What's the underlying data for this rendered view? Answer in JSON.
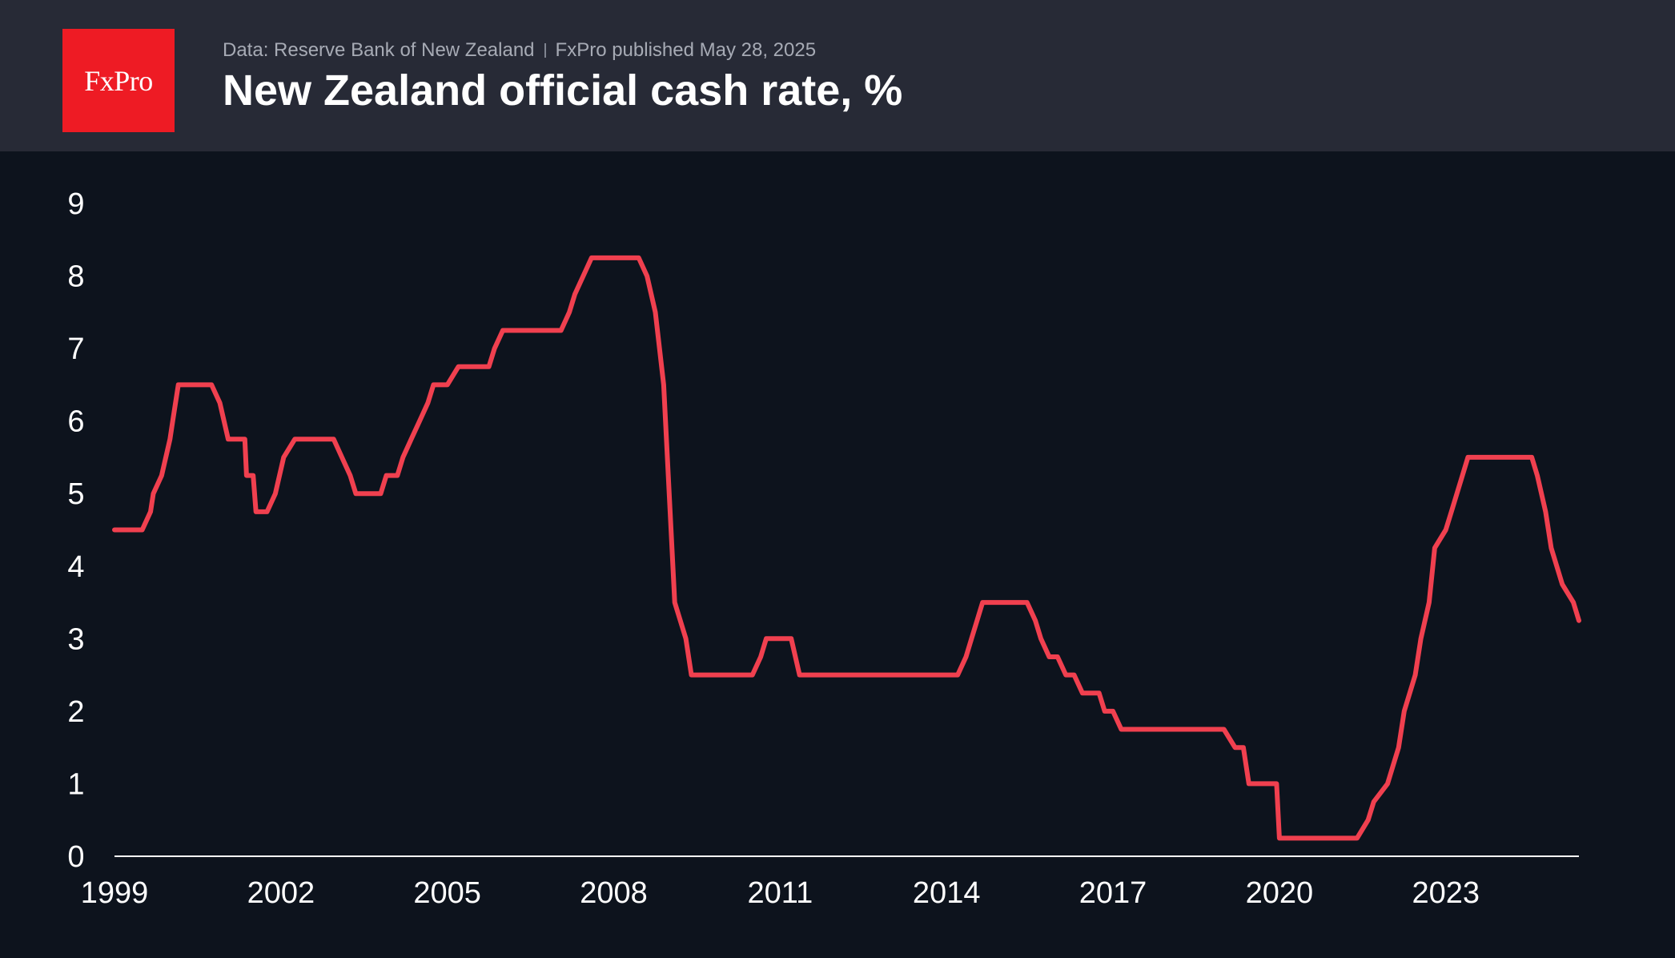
{
  "header": {
    "logo_text": "FxPro",
    "source": "Data: Reserve Bank of New Zealand",
    "publisher": "FxPro published May 28, 2025",
    "title": "New Zealand official cash rate, %"
  },
  "colors": {
    "background": "#0d131d",
    "header_background": "#272a36",
    "logo_red": "#ee1b24",
    "line": "#f0404f",
    "axis": "#ffffff"
  },
  "chart_data": {
    "type": "line",
    "title": "New Zealand official cash rate, %",
    "xlabel": "",
    "ylabel": "",
    "xlim": [
      1999.0,
      2025.4
    ],
    "ylim": [
      0,
      9
    ],
    "grid": false,
    "legend": "none",
    "x_ticks": [
      1999,
      2002,
      2005,
      2008,
      2011,
      2014,
      2017,
      2020,
      2023
    ],
    "y_ticks": [
      0,
      1,
      2,
      3,
      4,
      5,
      6,
      7,
      8,
      9
    ],
    "series": [
      {
        "name": "",
        "points": [
          [
            1999.0,
            4.5
          ],
          [
            1999.5,
            4.5
          ],
          [
            1999.65,
            4.75
          ],
          [
            1999.7,
            5.0
          ],
          [
            1999.85,
            5.25
          ],
          [
            2000.0,
            5.75
          ],
          [
            2000.05,
            6.0
          ],
          [
            2000.15,
            6.5
          ],
          [
            2000.75,
            6.5
          ],
          [
            2000.9,
            6.25
          ],
          [
            2001.05,
            5.75
          ],
          [
            2001.35,
            5.75
          ],
          [
            2001.38,
            5.25
          ],
          [
            2001.5,
            5.25
          ],
          [
            2001.55,
            4.75
          ],
          [
            2001.75,
            4.75
          ],
          [
            2001.9,
            5.0
          ],
          [
            2002.05,
            5.5
          ],
          [
            2002.25,
            5.75
          ],
          [
            2002.95,
            5.75
          ],
          [
            2003.1,
            5.5
          ],
          [
            2003.25,
            5.25
          ],
          [
            2003.35,
            5.0
          ],
          [
            2003.8,
            5.0
          ],
          [
            2003.9,
            5.25
          ],
          [
            2004.1,
            5.25
          ],
          [
            2004.2,
            5.5
          ],
          [
            2004.35,
            5.75
          ],
          [
            2004.5,
            6.0
          ],
          [
            2004.65,
            6.25
          ],
          [
            2004.75,
            6.5
          ],
          [
            2005.0,
            6.5
          ],
          [
            2005.2,
            6.75
          ],
          [
            2005.75,
            6.75
          ],
          [
            2005.85,
            7.0
          ],
          [
            2006.0,
            7.25
          ],
          [
            2007.05,
            7.25
          ],
          [
            2007.2,
            7.5
          ],
          [
            2007.3,
            7.75
          ],
          [
            2007.45,
            8.0
          ],
          [
            2007.6,
            8.25
          ],
          [
            2008.45,
            8.25
          ],
          [
            2008.6,
            8.0
          ],
          [
            2008.75,
            7.5
          ],
          [
            2008.9,
            6.5
          ],
          [
            2009.0,
            5.0
          ],
          [
            2009.1,
            3.5
          ],
          [
            2009.3,
            3.0
          ],
          [
            2009.4,
            2.5
          ],
          [
            2010.5,
            2.5
          ],
          [
            2010.65,
            2.75
          ],
          [
            2010.75,
            3.0
          ],
          [
            2011.2,
            3.0
          ],
          [
            2011.35,
            2.5
          ],
          [
            2014.2,
            2.5
          ],
          [
            2014.35,
            2.75
          ],
          [
            2014.45,
            3.0
          ],
          [
            2014.55,
            3.25
          ],
          [
            2014.65,
            3.5
          ],
          [
            2015.45,
            3.5
          ],
          [
            2015.6,
            3.25
          ],
          [
            2015.7,
            3.0
          ],
          [
            2015.85,
            2.75
          ],
          [
            2016.0,
            2.75
          ],
          [
            2016.15,
            2.5
          ],
          [
            2016.3,
            2.5
          ],
          [
            2016.45,
            2.25
          ],
          [
            2016.75,
            2.25
          ],
          [
            2016.85,
            2.0
          ],
          [
            2017.0,
            2.0
          ],
          [
            2017.15,
            1.75
          ],
          [
            2019.0,
            1.75
          ],
          [
            2019.2,
            1.5
          ],
          [
            2019.35,
            1.5
          ],
          [
            2019.45,
            1.0
          ],
          [
            2019.95,
            1.0
          ],
          [
            2020.0,
            0.25
          ],
          [
            2021.4,
            0.25
          ],
          [
            2021.6,
            0.5
          ],
          [
            2021.7,
            0.75
          ],
          [
            2021.95,
            1.0
          ],
          [
            2022.05,
            1.25
          ],
          [
            2022.15,
            1.5
          ],
          [
            2022.25,
            2.0
          ],
          [
            2022.45,
            2.5
          ],
          [
            2022.55,
            3.0
          ],
          [
            2022.7,
            3.5
          ],
          [
            2022.8,
            4.25
          ],
          [
            2023.0,
            4.5
          ],
          [
            2023.1,
            4.75
          ],
          [
            2023.2,
            5.0
          ],
          [
            2023.3,
            5.25
          ],
          [
            2023.4,
            5.5
          ],
          [
            2024.55,
            5.5
          ],
          [
            2024.65,
            5.25
          ],
          [
            2024.8,
            4.75
          ],
          [
            2024.9,
            4.25
          ],
          [
            2025.1,
            3.75
          ],
          [
            2025.3,
            3.5
          ],
          [
            2025.4,
            3.25
          ]
        ]
      }
    ]
  }
}
